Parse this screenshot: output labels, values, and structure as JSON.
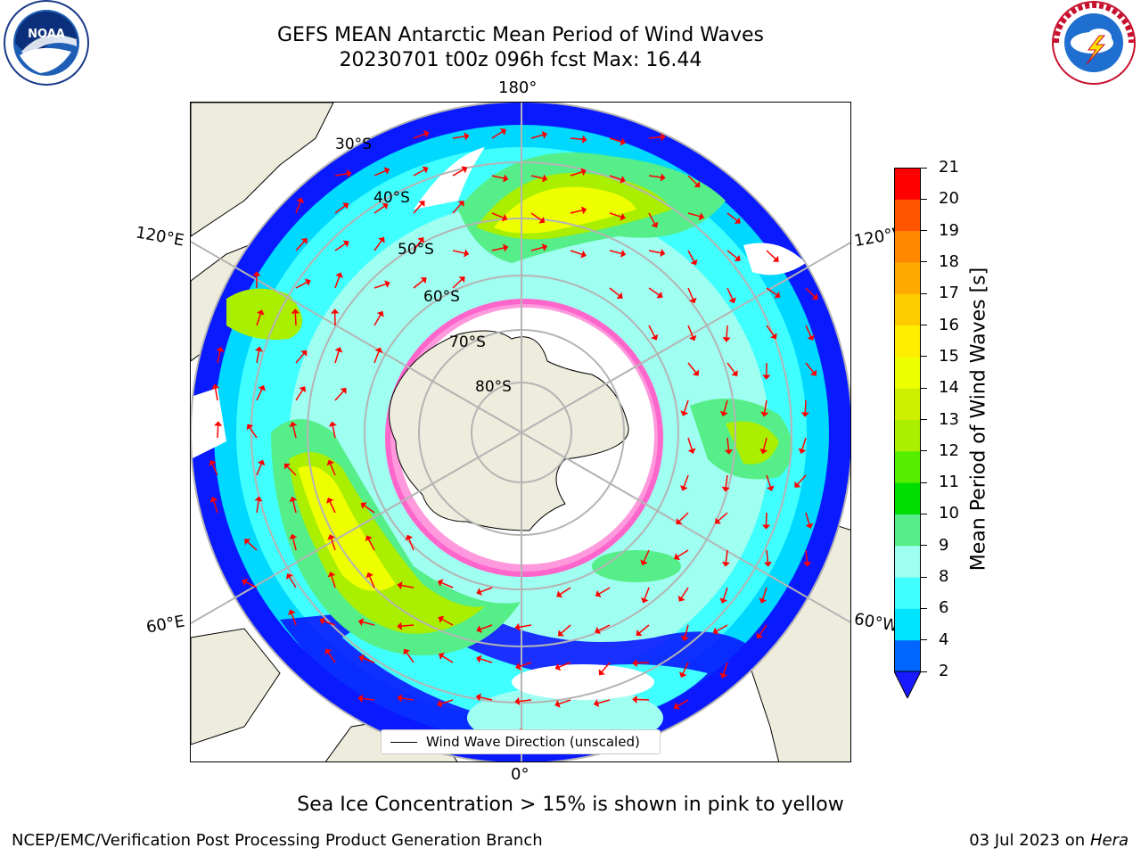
{
  "title": {
    "line1": "GEFS MEAN Antarctic Mean Period of Wind Waves",
    "line2": "20230701 t00z 096h fcst   Max: 16.44"
  },
  "logos": {
    "left": {
      "icon": "noaa-logo",
      "text": "NOAA"
    },
    "right": {
      "icon": "nws-logo",
      "text": "NATIONAL WEATHER SERVICE"
    }
  },
  "map": {
    "projection": "south-polar-stereographic",
    "longitude_labels": {
      "top": "180°",
      "bottom": "0°",
      "upper_left": "120°E",
      "upper_right": "120°W",
      "lower_left": "60°E",
      "lower_right": "60°W"
    },
    "latitude_labels": [
      "30°S",
      "40°S",
      "50°S",
      "60°S",
      "70°S",
      "80°S"
    ],
    "legend": "Wind Wave Direction (unscaled)"
  },
  "colorbar": {
    "label": "Mean Period of Wind Waves [s]",
    "ticks": [
      "2",
      "4",
      "6",
      "8",
      "9",
      "10",
      "11",
      "12",
      "13",
      "14",
      "15",
      "16",
      "17",
      "18",
      "19",
      "20",
      "21"
    ],
    "colors": [
      "#0066ff",
      "#00e5ff",
      "#40ffff",
      "#9ffff0",
      "#55ee88",
      "#00dd00",
      "#55ee00",
      "#aaee00",
      "#ccf000",
      "#eeff00",
      "#ffee00",
      "#ffcc00",
      "#ffaa00",
      "#ff8800",
      "#ff5500",
      "#ff0000"
    ],
    "under_color": "#1a1aff"
  },
  "note": "Sea Ice Concentration > 15% is shown in pink to yellow",
  "footer": {
    "left": "NCEP/EMC/Verification Post Processing Product Generation Branch",
    "date": "03 Jul 2023 on ",
    "host": "Hera"
  }
}
